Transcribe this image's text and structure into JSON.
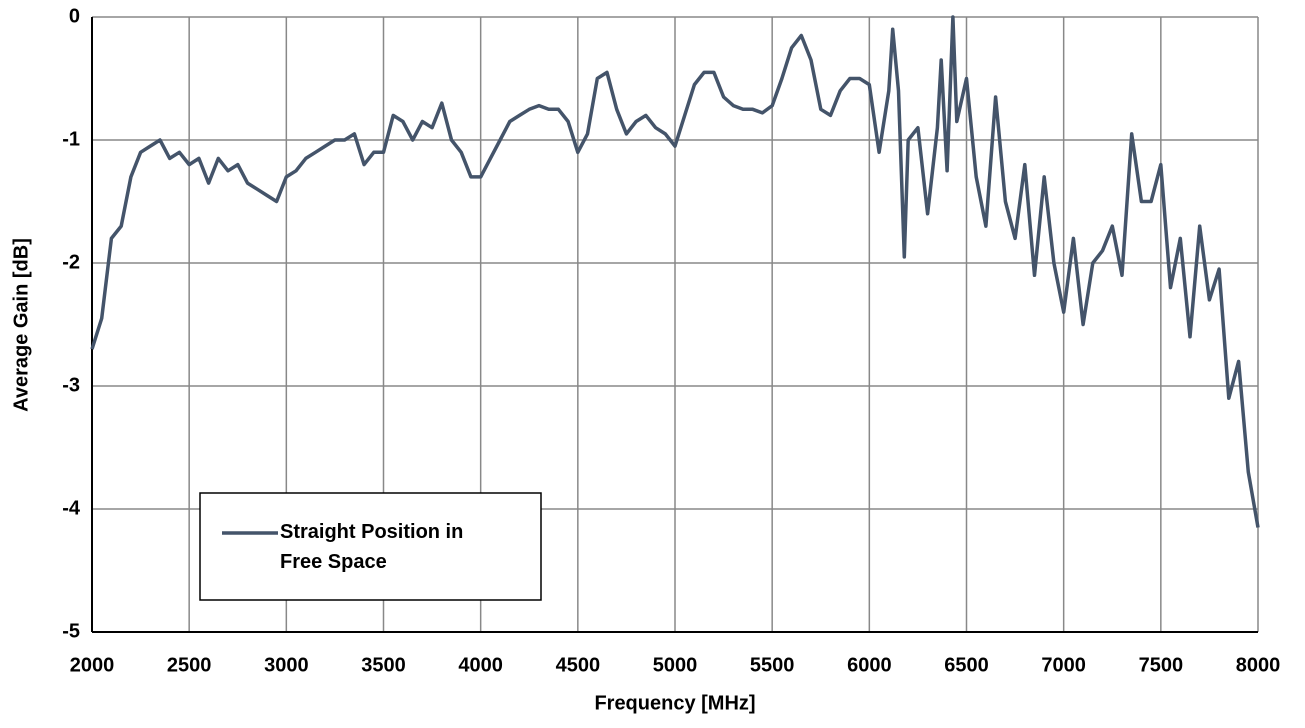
{
  "chart_data": {
    "type": "line",
    "xlabel": "Frequency [MHz]",
    "ylabel": "Average Gain [dB]",
    "x": [
      2000,
      2050,
      2100,
      2150,
      2200,
      2250,
      2300,
      2350,
      2400,
      2450,
      2500,
      2550,
      2600,
      2650,
      2700,
      2750,
      2800,
      2850,
      2900,
      2950,
      3000,
      3050,
      3100,
      3150,
      3200,
      3250,
      3300,
      3350,
      3400,
      3450,
      3500,
      3550,
      3600,
      3650,
      3700,
      3750,
      3800,
      3850,
      3900,
      3950,
      4000,
      4050,
      4100,
      4150,
      4200,
      4250,
      4300,
      4350,
      4400,
      4450,
      4500,
      4550,
      4600,
      4650,
      4700,
      4750,
      4800,
      4850,
      4900,
      4950,
      5000,
      5050,
      5100,
      5150,
      5200,
      5250,
      5300,
      5350,
      5400,
      5450,
      5500,
      5550,
      5600,
      5650,
      5700,
      5750,
      5800,
      5850,
      5900,
      5950,
      6000,
      6050,
      6100,
      6120,
      6150,
      6180,
      6200,
      6250,
      6300,
      6350,
      6370,
      6400,
      6430,
      6450,
      6500,
      6550,
      6600,
      6650,
      6700,
      6750,
      6800,
      6850,
      6900,
      6950,
      7000,
      7050,
      7100,
      7150,
      7200,
      7250,
      7300,
      7350,
      7400,
      7450,
      7500,
      7550,
      7600,
      7650,
      7700,
      7750,
      7800,
      7850,
      7900,
      7950,
      8000
    ],
    "series": [
      {
        "name": "Straight Position in Free Space",
        "color": "#44546a",
        "values": [
          -2.7,
          -2.45,
          -1.8,
          -1.7,
          -1.3,
          -1.1,
          -1.05,
          -1.0,
          -1.15,
          -1.1,
          -1.2,
          -1.15,
          -1.35,
          -1.15,
          -1.25,
          -1.2,
          -1.35,
          -1.4,
          -1.45,
          -1.5,
          -1.3,
          -1.25,
          -1.15,
          -1.1,
          -1.05,
          -1.0,
          -1.0,
          -0.95,
          -1.2,
          -1.1,
          -1.1,
          -0.8,
          -0.85,
          -1.0,
          -0.85,
          -0.9,
          -0.7,
          -1.0,
          -1.1,
          -1.3,
          -1.3,
          -1.15,
          -1.0,
          -0.85,
          -0.8,
          -0.75,
          -0.72,
          -0.75,
          -0.75,
          -0.85,
          -1.1,
          -0.95,
          -0.5,
          -0.45,
          -0.75,
          -0.95,
          -0.85,
          -0.8,
          -0.9,
          -0.95,
          -1.05,
          -0.8,
          -0.55,
          -0.45,
          -0.45,
          -0.65,
          -0.72,
          -0.75,
          -0.75,
          -0.78,
          -0.72,
          -0.5,
          -0.25,
          -0.15,
          -0.35,
          -0.75,
          -0.8,
          -0.6,
          -0.5,
          -0.5,
          -0.55,
          -1.1,
          -0.6,
          -0.1,
          -0.6,
          -1.95,
          -1.0,
          -0.9,
          -1.6,
          -0.9,
          -0.35,
          -1.25,
          0.0,
          -0.85,
          -0.5,
          -1.3,
          -1.7,
          -0.65,
          -1.5,
          -1.8,
          -1.2,
          -2.1,
          -1.3,
          -2.0,
          -2.4,
          -1.8,
          -2.5,
          -2.0,
          -1.9,
          -1.7,
          -2.1,
          -0.95,
          -1.5,
          -1.5,
          -1.2,
          -2.2,
          -1.8,
          -2.6,
          -1.7,
          -2.3,
          -2.05,
          -3.1,
          -2.8,
          -3.7,
          -4.15
        ]
      }
    ],
    "xlim": [
      2000,
      8000
    ],
    "xticks": [
      2000,
      2500,
      3000,
      3500,
      4000,
      4500,
      5000,
      5500,
      6000,
      6500,
      7000,
      7500,
      8000
    ],
    "ylim": [
      -5,
      0
    ],
    "yticks": [
      -5,
      -4,
      -3,
      -2,
      -1,
      0
    ],
    "grid": true,
    "legend": "lower left"
  }
}
